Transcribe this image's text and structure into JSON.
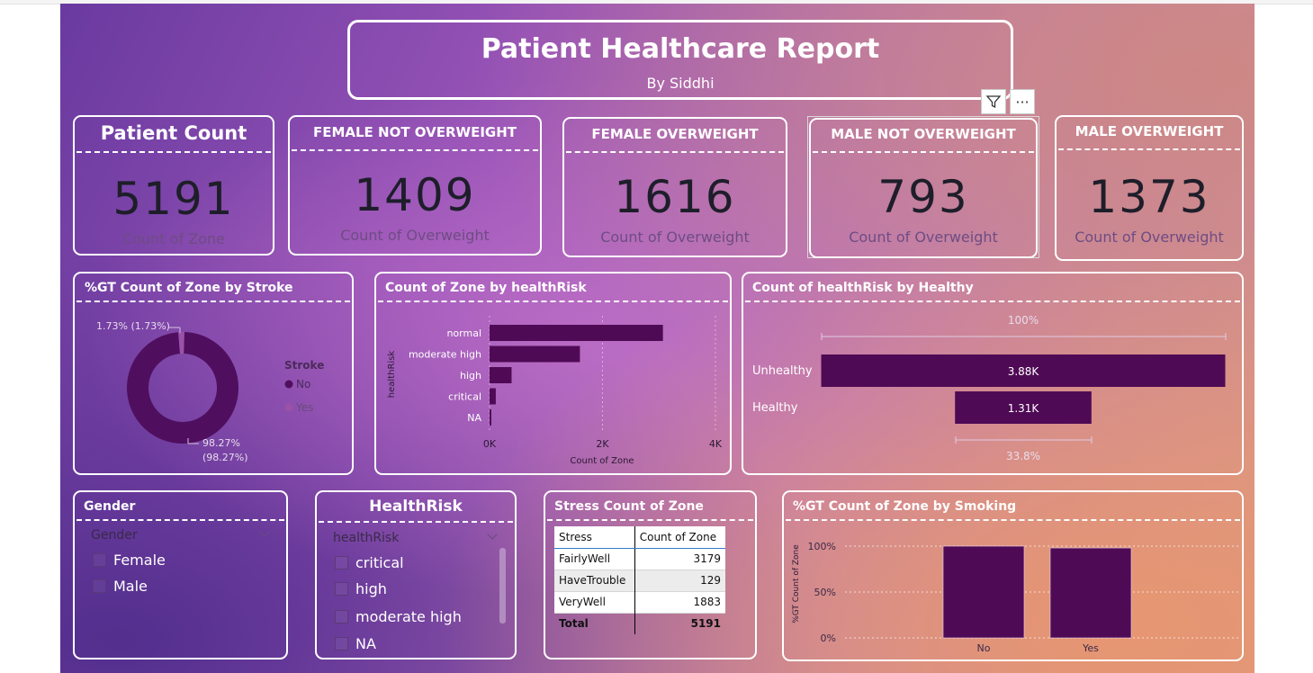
{
  "report": {
    "title": "Patient Healthcare Report",
    "subtitle": "By Siddhi"
  },
  "kpis": [
    {
      "label": "Patient Count",
      "value": "5191",
      "sub": "Count of Zone"
    },
    {
      "label": "FEMALE NOT OVERWEIGHT",
      "value": "1409",
      "sub": "Count of Overweight"
    },
    {
      "label": "FEMALE OVERWEIGHT",
      "value": "1616",
      "sub": "Count of Overweight"
    },
    {
      "label": "MALE NOT OVERWEIGHT",
      "value": "793",
      "sub": "Count of Overweight"
    },
    {
      "label": "MALE OVERWEIGHT",
      "value": "1373",
      "sub": "Count of Overweight"
    }
  ],
  "visual_header": {
    "filter_icon": "filter-icon",
    "more_icon": "more-options-icon",
    "more_glyph": "···"
  },
  "stroke": {
    "title": "%GT Count of Zone by Stroke",
    "legend_title": "Stroke",
    "legend": [
      "No",
      "Yes"
    ],
    "label_yes": "1.73% (1.73%)",
    "label_no_1": "98.27%",
    "label_no_2": "(98.27%)"
  },
  "healthrisk_bar": {
    "title": "Count of Zone by healthRisk",
    "axis_title": "healthRisk",
    "xaxis_title": "Count of Zone",
    "ticks": [
      "0K",
      "2K",
      "4K"
    ]
  },
  "healthy": {
    "title": "Count of healthRisk by Healthy",
    "top_label": "100%",
    "bottom_label": "33.8%"
  },
  "gender_slicer": {
    "title": "Gender",
    "header": "Gender",
    "items": [
      "Female",
      "Male"
    ]
  },
  "healthrisk_slicer": {
    "title": "HealthRisk",
    "header": "healthRisk",
    "items": [
      "critical",
      "high",
      "moderate high",
      "NA"
    ]
  },
  "stress_table": {
    "title": "Stress Count of Zone",
    "columns": [
      "Stress",
      "Count of Zone"
    ],
    "rows": [
      {
        "stress": "FairlyWell",
        "count": "3179"
      },
      {
        "stress": "HaveTrouble",
        "count": "129"
      },
      {
        "stress": "VeryWell",
        "count": "1883"
      }
    ],
    "total_label": "Total",
    "total_value": "5191"
  },
  "smoking": {
    "title": "%GT Count of Zone by Smoking",
    "axis_title": "%GT Count of Zone",
    "ticks": [
      "100%",
      "50%",
      "0%"
    ]
  },
  "chart_data": [
    {
      "type": "pie",
      "title": "%GT Count of Zone by Stroke",
      "categories": [
        "No",
        "Yes"
      ],
      "values": [
        98.27,
        1.73
      ],
      "colors": [
        "#4f0f5e",
        "#9a52a8"
      ]
    },
    {
      "type": "bar",
      "orientation": "horizontal",
      "title": "Count of Zone by healthRisk",
      "categories": [
        "normal",
        "moderate high",
        "high",
        "critical",
        "NA"
      ],
      "values": [
        3070,
        1600,
        390,
        110,
        25
      ],
      "xlabel": "Count of Zone",
      "ylabel": "healthRisk",
      "xlim": [
        0,
        4000
      ],
      "color": "#4f0a55"
    },
    {
      "type": "bar",
      "orientation": "horizontal",
      "title": "Count of healthRisk by Healthy",
      "categories": [
        "Unhealthy",
        "Healthy"
      ],
      "values": [
        3880,
        1310
      ],
      "data_labels": [
        "3.88K",
        "1.31K"
      ],
      "color": "#4f0a55"
    },
    {
      "type": "bar",
      "title": "%GT Count of Zone by Smoking",
      "categories": [
        "No",
        "Yes"
      ],
      "values": [
        100,
        98
      ],
      "ylabel": "%GT Count of Zone",
      "ylim": [
        0,
        100
      ],
      "color": "#4f0a55"
    }
  ]
}
